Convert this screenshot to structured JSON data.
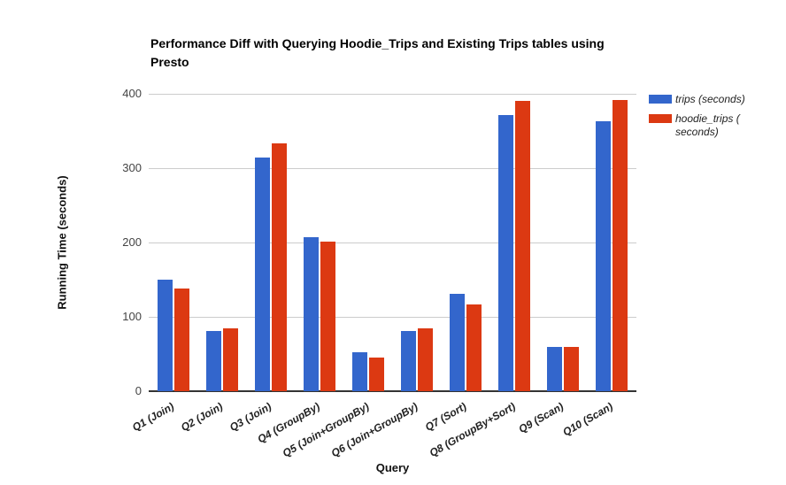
{
  "title": "Performance Diff with Querying Hoodie_Trips and Existing Trips tables using Presto",
  "colors": {
    "trips": "#3366CC",
    "hoodie_trips": "#DC3912",
    "gridline": "#CCCCCC",
    "axis_line": "#333333",
    "tick_text": "#444444"
  },
  "y_axis": {
    "title": "Running Time (seconds)",
    "ticks": [
      0,
      100,
      200,
      300,
      400
    ],
    "max": 400
  },
  "x_axis": {
    "title": "Query"
  },
  "legend": {
    "items": [
      {
        "name": "trips (seconds)",
        "lines": [
          "trips (seconds)",
          ""
        ]
      },
      {
        "name": "hoodie_trips (seconds)",
        "lines": [
          "hoodie_trips (",
          "seconds)"
        ]
      }
    ]
  },
  "chart_data": {
    "type": "bar",
    "title": "Performance Diff with Querying Hoodie_Trips and Existing Trips tables using Presto",
    "categories": [
      "Q1 (Join)",
      "Q2 (Join)",
      "Q3 (Join)",
      "Q4 (GroupBy)",
      "Q5 (Join+GroupBy)",
      "Q6 (Join+GroupBy)",
      "Q7 (Sort)",
      "Q8 (GroupBy+Sort)",
      "Q9 (Scan)",
      "Q10 (Scan)"
    ],
    "series": [
      {
        "name": "trips (seconds)",
        "color": "#3366CC",
        "values": [
          150,
          81,
          314,
          207,
          52,
          81,
          131,
          371,
          60,
          363
        ]
      },
      {
        "name": "hoodie_trips (seconds)",
        "color": "#DC3912",
        "values": [
          138,
          84,
          333,
          201,
          45,
          85,
          117,
          390,
          59,
          392
        ]
      }
    ],
    "xlabel": "Query",
    "ylabel": "Running Time (seconds)",
    "ylim": [
      0,
      400
    ],
    "grid": true,
    "legend_position": "right"
  }
}
